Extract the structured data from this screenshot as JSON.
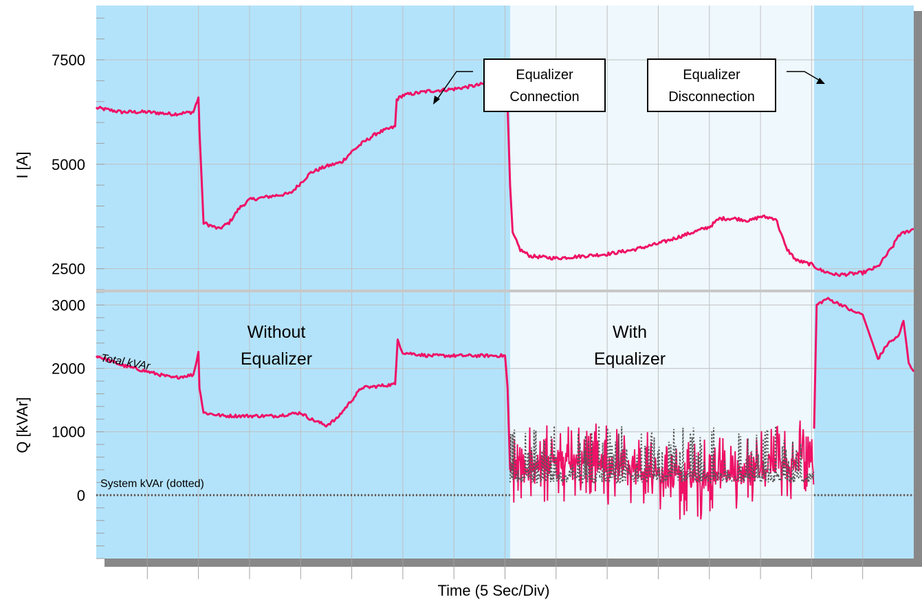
{
  "chart_data": [
    {
      "type": "line",
      "panel": "top",
      "ylabel": "I [A]",
      "ylim": [
        2000,
        8800
      ],
      "yticks": [
        2500,
        5000,
        7500
      ],
      "ytick_labels": [
        "2500",
        "5000",
        "7500"
      ],
      "xlim": [
        0,
        16
      ],
      "grid": true,
      "series": [
        {
          "color": "#ee1166",
          "x": [
            0,
            0.5,
            1,
            1.5,
            1.9,
            2.0,
            2.02,
            2.1,
            2.4,
            2.6,
            2.8,
            3.0,
            3.5,
            3.8,
            4.0,
            4.2,
            4.5,
            4.8,
            5.0,
            5.2,
            5.5,
            5.85,
            5.88,
            6.0,
            6.5,
            7.0,
            7.5,
            8.0,
            8.05,
            8.1,
            8.15,
            8.3,
            8.5,
            9.0,
            9.5,
            10.0,
            10.5,
            11.0,
            11.5,
            12.0,
            12.2,
            12.5,
            12.8,
            13.0,
            13.3,
            13.5,
            13.7,
            14.0,
            14.2,
            14.5,
            15.0,
            15.3,
            15.6,
            15.7,
            16.0
          ],
          "values": [
            6350,
            6250,
            6250,
            6200,
            6250,
            6600,
            5800,
            3600,
            3450,
            3600,
            3950,
            4150,
            4250,
            4300,
            4550,
            4800,
            4950,
            5050,
            5300,
            5500,
            5750,
            5900,
            6550,
            6650,
            6750,
            6800,
            6900,
            7050,
            6400,
            4500,
            3350,
            2950,
            2800,
            2750,
            2800,
            2850,
            2950,
            3100,
            3300,
            3500,
            3700,
            3700,
            3650,
            3750,
            3700,
            3000,
            2700,
            2600,
            2450,
            2350,
            2400,
            2550,
            3050,
            3300,
            3450
          ]
        }
      ]
    },
    {
      "type": "line",
      "panel": "bottom",
      "ylabel": "Q [kVAr]",
      "ylim": [
        -1000,
        3200
      ],
      "yticks": [
        0,
        1000,
        2000,
        3000
      ],
      "ytick_labels": [
        "0",
        "1000",
        "2000",
        "3000"
      ],
      "xlim": [
        0,
        16
      ],
      "grid": true,
      "series": [
        {
          "color": "#ee1166",
          "x": [
            0,
            0.5,
            1,
            1.5,
            1.9,
            2.0,
            2.02,
            2.1,
            2.5,
            3.0,
            3.5,
            4.0,
            4.2,
            4.5,
            4.7,
            4.9,
            5.0,
            5.2,
            5.3,
            5.85,
            5.9,
            6.0,
            6.5,
            7.0,
            7.5,
            8.0,
            8.05,
            8.1
          ],
          "values": [
            2200,
            2050,
            1950,
            1850,
            1900,
            2250,
            1700,
            1300,
            1250,
            1250,
            1250,
            1300,
            1200,
            1100,
            1200,
            1400,
            1500,
            1700,
            1700,
            1750,
            2450,
            2250,
            2200,
            2200,
            2200,
            2200,
            1700,
            400
          ]
        },
        {
          "color": "#ee1166",
          "x": [
            14.05,
            14.1,
            14.3,
            14.6,
            14.8,
            15.0,
            15.3,
            15.5,
            15.7,
            15.8,
            15.9,
            16.0
          ],
          "values": [
            1050,
            3000,
            3100,
            3000,
            2900,
            2850,
            2150,
            2400,
            2500,
            2750,
            2100,
            1950
          ]
        },
        {
          "color": "#555555",
          "dash": "dotted",
          "x": [
            0,
            8.1
          ],
          "values": [
            0,
            0
          ]
        },
        {
          "color": "#555555",
          "dash": "dotted",
          "x": [
            14.05,
            16.0
          ],
          "values": [
            0,
            0
          ]
        }
      ]
    }
  ],
  "with_equalizer_band": {
    "x_start": 8.1,
    "x_end": 14.05
  },
  "xlabel": "Time (5 Sec/Div)",
  "annotations": {
    "connection_line1": "Equalizer",
    "connection_line2": "Connection",
    "disconnection_line1": "Equalizer",
    "disconnection_line2": "Disconnection",
    "without_line1": "Without",
    "without_line2": "Equalizer",
    "with_line1": "With",
    "with_line2": "Equalizer",
    "total_kvar": "Total kVAr",
    "system_kvar": "System kVAr (dotted)"
  },
  "colors": {
    "background_band": "#b3e3fb",
    "with_band": "#eef8fd",
    "trace": "#ee1166",
    "dotted": "#555555",
    "shadow": "#888888"
  }
}
